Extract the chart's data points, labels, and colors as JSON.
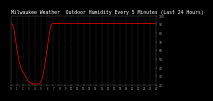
{
  "title": "Milwaukee Weather  Outdoor Humidity Every 5 Minutes (Last 24 Hours)",
  "title_fontsize": 3.5,
  "bg_color": "#000000",
  "plot_bg_color": "#000000",
  "line_color": "#ff0000",
  "grid_color": "#555555",
  "text_color": "#ffffff",
  "tick_color": "#aaaaaa",
  "ylim": [
    20,
    100
  ],
  "yticks": [
    20,
    30,
    40,
    50,
    60,
    70,
    80,
    90,
    100
  ],
  "num_xticks": 25,
  "humidity_profile": [
    91,
    91,
    90,
    90,
    89,
    87,
    85,
    82,
    78,
    74,
    70,
    66,
    62,
    58,
    55,
    52,
    49,
    46,
    44,
    42,
    40,
    38,
    37,
    36,
    35,
    34,
    33,
    32,
    31,
    30,
    29,
    28,
    27,
    26,
    25,
    24,
    24,
    23,
    23,
    22,
    22,
    22,
    22,
    21,
    21,
    21,
    21,
    21,
    21,
    21,
    21,
    21,
    21,
    21,
    21,
    21,
    21,
    22,
    22,
    23,
    24,
    25,
    27,
    29,
    32,
    35,
    38,
    42,
    46,
    50,
    54,
    58,
    62,
    66,
    70,
    74,
    78,
    82,
    85,
    88,
    90,
    90,
    91,
    91,
    91,
    91,
    91,
    91,
    91,
    91,
    91,
    91,
    91,
    91,
    91,
    91,
    91,
    91,
    91,
    91,
    91,
    91,
    91,
    91,
    91,
    91,
    91,
    91,
    91,
    91,
    91,
    91,
    91,
    91,
    91,
    91,
    91,
    91,
    91,
    91,
    91,
    91,
    91,
    91,
    91,
    91,
    91,
    91,
    91,
    91,
    91,
    91,
    91,
    91,
    91,
    91,
    91,
    91,
    91,
    91,
    91,
    91,
    91,
    91,
    91,
    91,
    91,
    91,
    91,
    91,
    91,
    91,
    91,
    91,
    91,
    91,
    91,
    91,
    91,
    91,
    91,
    91,
    91,
    91,
    91,
    91,
    91,
    91,
    91,
    91,
    91,
    91,
    91,
    91,
    91,
    91,
    91,
    91,
    91,
    91,
    91,
    91,
    91,
    91,
    91,
    91,
    91,
    91,
    91,
    91,
    91,
    91,
    91,
    91,
    91,
    91,
    91,
    91,
    91,
    91,
    91,
    91,
    91,
    91,
    91,
    91,
    91,
    91,
    91,
    91,
    91,
    91,
    91,
    91,
    91,
    91,
    91,
    91,
    91,
    91,
    91,
    91,
    91,
    91,
    91,
    91,
    91,
    91,
    91,
    91,
    91,
    91,
    91,
    91,
    91,
    91,
    91,
    91,
    91,
    91,
    91,
    91,
    91,
    91,
    91,
    91,
    91,
    91,
    91,
    91,
    91,
    91,
    91,
    91,
    91,
    91,
    91,
    91,
    91,
    91,
    91,
    91,
    91,
    91,
    91,
    91,
    91,
    91,
    91,
    91,
    91,
    91,
    91,
    91,
    91,
    91,
    91,
    91,
    91,
    91,
    91,
    91,
    91,
    91,
    91,
    91,
    91,
    91,
    91
  ]
}
